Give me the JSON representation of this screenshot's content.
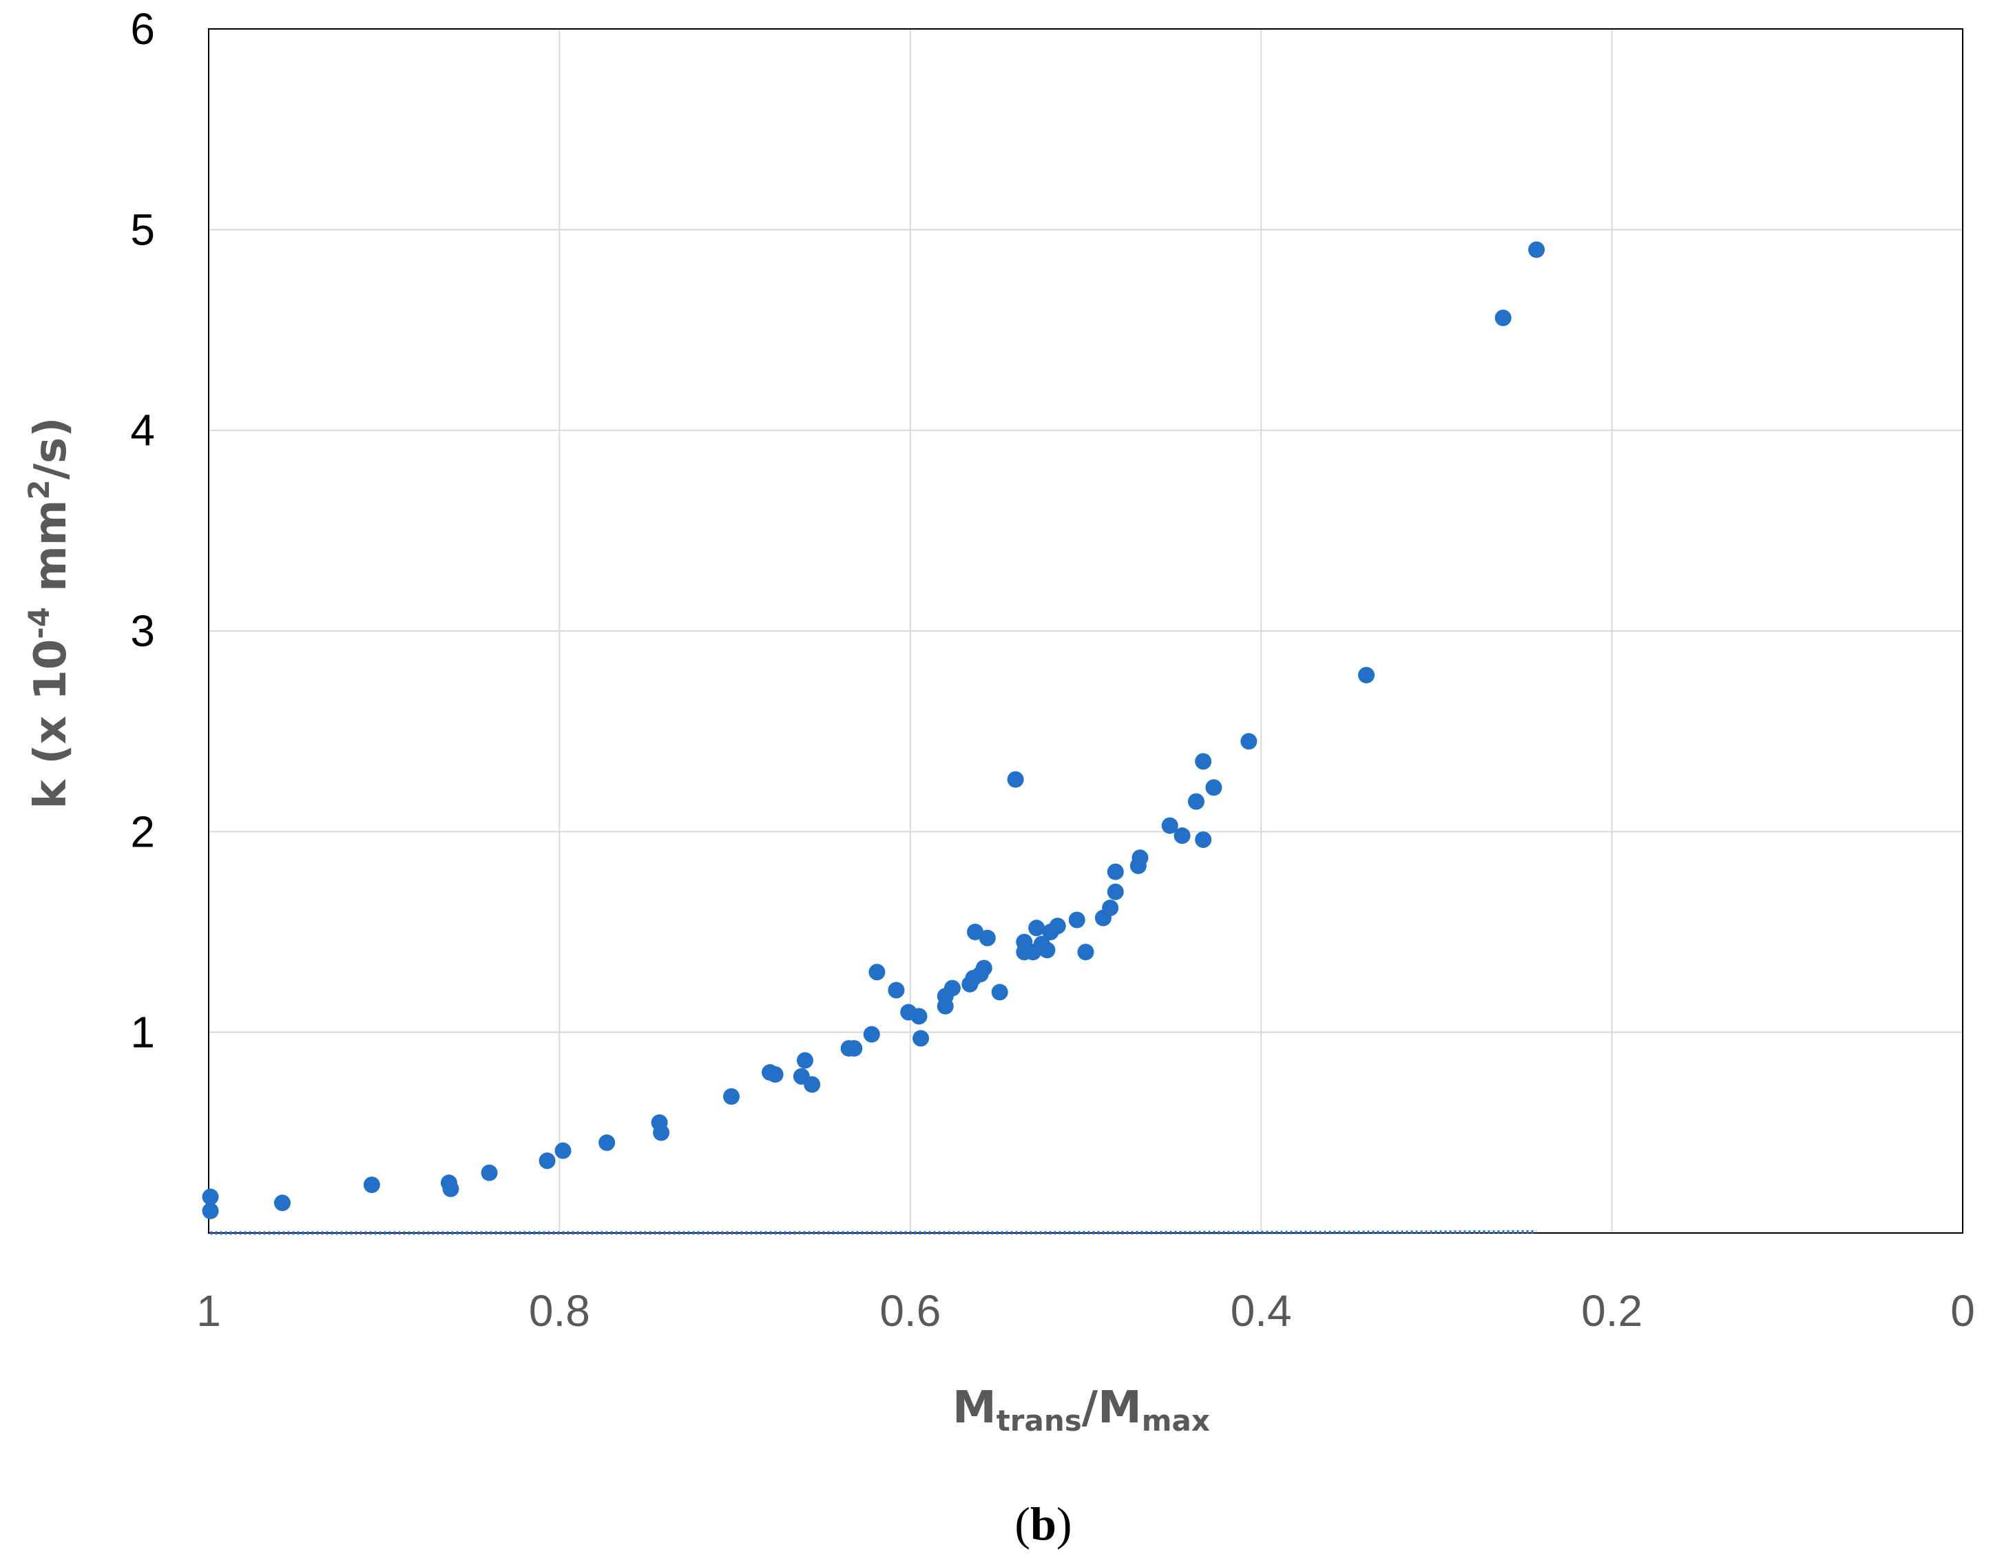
{
  "chart_data": {
    "type": "scatter",
    "panel_label": "b",
    "xlabel": {
      "main1": "M",
      "sub1": "trans",
      "sep": "/M",
      "sub2": "max"
    },
    "ylabel": {
      "pre": "k (x 10",
      "sup1": "-4",
      "mid": " mm",
      "sup2": "2",
      "post": "/s)"
    },
    "xlim": [
      1,
      0
    ],
    "ylim": [
      0,
      6
    ],
    "xticks": [
      "1",
      "0.8",
      "0.6",
      "0.4",
      "0.2",
      "0"
    ],
    "xtick_values": [
      1,
      0.8,
      0.6,
      0.4,
      0.2,
      0
    ],
    "yticks": [
      "1",
      "2",
      "3",
      "4",
      "5",
      "6"
    ],
    "ytick_values": [
      1,
      2,
      3,
      4,
      5,
      6
    ],
    "grid": true,
    "color": "#2270c8",
    "series": [
      {
        "name": "k",
        "points": [
          [
            0.999,
            0.18
          ],
          [
            0.999,
            0.11
          ],
          [
            0.958,
            0.15
          ],
          [
            0.907,
            0.24
          ],
          [
            0.863,
            0.25
          ],
          [
            0.862,
            0.22
          ],
          [
            0.84,
            0.3
          ],
          [
            0.807,
            0.36
          ],
          [
            0.798,
            0.41
          ],
          [
            0.773,
            0.45
          ],
          [
            0.743,
            0.55
          ],
          [
            0.742,
            0.5
          ],
          [
            0.702,
            0.68
          ],
          [
            0.68,
            0.8
          ],
          [
            0.677,
            0.79
          ],
          [
            0.662,
            0.78
          ],
          [
            0.66,
            0.86
          ],
          [
            0.656,
            0.74
          ],
          [
            0.635,
            0.92
          ],
          [
            0.632,
            0.92
          ],
          [
            0.622,
            0.99
          ],
          [
            0.619,
            1.3
          ],
          [
            0.608,
            1.21
          ],
          [
            0.601,
            1.1
          ],
          [
            0.595,
            1.08
          ],
          [
            0.594,
            0.97
          ],
          [
            0.58,
            1.13
          ],
          [
            0.58,
            1.18
          ],
          [
            0.576,
            1.22
          ],
          [
            0.566,
            1.24
          ],
          [
            0.564,
            1.27
          ],
          [
            0.56,
            1.29
          ],
          [
            0.558,
            1.32
          ],
          [
            0.556,
            1.47
          ],
          [
            0.563,
            1.5
          ],
          [
            0.549,
            1.2
          ],
          [
            0.54,
            2.26
          ],
          [
            0.535,
            1.4
          ],
          [
            0.535,
            1.45
          ],
          [
            0.53,
            1.4
          ],
          [
            0.528,
            1.52
          ],
          [
            0.525,
            1.44
          ],
          [
            0.522,
            1.41
          ],
          [
            0.52,
            1.5
          ],
          [
            0.516,
            1.53
          ],
          [
            0.505,
            1.56
          ],
          [
            0.5,
            1.4
          ],
          [
            0.49,
            1.57
          ],
          [
            0.486,
            1.62
          ],
          [
            0.483,
            1.7
          ],
          [
            0.483,
            1.8
          ],
          [
            0.47,
            1.83
          ],
          [
            0.469,
            1.87
          ],
          [
            0.452,
            2.03
          ],
          [
            0.445,
            1.98
          ],
          [
            0.437,
            2.15
          ],
          [
            0.433,
            2.35
          ],
          [
            0.433,
            1.96
          ],
          [
            0.427,
            2.22
          ],
          [
            0.407,
            2.45
          ],
          [
            0.34,
            2.78
          ],
          [
            0.262,
            4.56
          ],
          [
            0.243,
            4.9
          ]
        ]
      }
    ],
    "trendline": {
      "type": "exponential",
      "x_from": 0.999,
      "x_to": 0.243,
      "a": 0.0224,
      "b": -5.66
    }
  }
}
